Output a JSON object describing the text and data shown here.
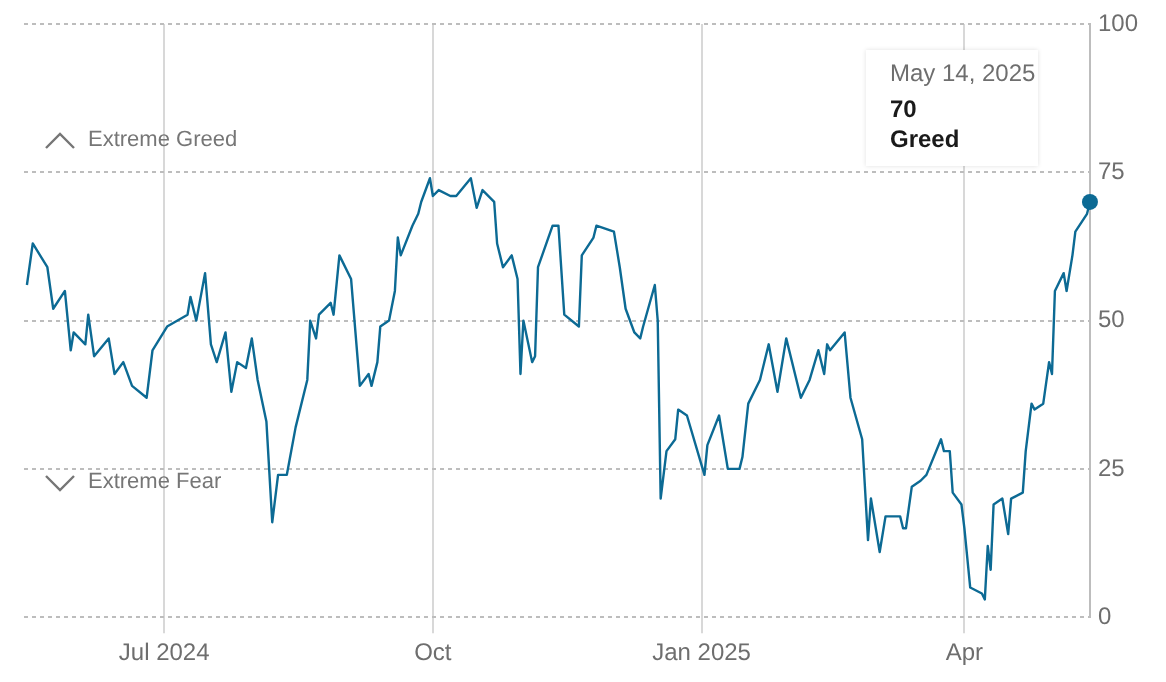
{
  "chart_data": {
    "type": "line",
    "grid": true,
    "legend": false,
    "marker": "none",
    "line_style": "solid",
    "xlim": [
      "2024-05-14",
      "2025-05-14"
    ],
    "ylim": [
      0,
      100
    ],
    "yticks": [
      0,
      25,
      50,
      75,
      100
    ],
    "xticks": [
      {
        "value": "2024-07-01",
        "label": "Jul 2024"
      },
      {
        "value": "2024-10-01",
        "label": "Oct"
      },
      {
        "value": "2025-01-01",
        "label": "Jan 2025"
      },
      {
        "value": "2025-04-01",
        "label": "Apr"
      }
    ],
    "annotations": [
      "Extreme Greed",
      "Extreme Fear",
      "May 14, 2025",
      "70",
      "Greed"
    ],
    "series": [
      {
        "color": "#0c6a94",
        "x": [
          "2024-05-15",
          "2024-05-17",
          "2024-05-22",
          "2024-05-24",
          "2024-05-28",
          "2024-05-30",
          "2024-05-31",
          "2024-06-04",
          "2024-06-05",
          "2024-06-07",
          "2024-06-12",
          "2024-06-14",
          "2024-06-17",
          "2024-06-20",
          "2024-06-25",
          "2024-06-27",
          "2024-07-02",
          "2024-07-09",
          "2024-07-10",
          "2024-07-12",
          "2024-07-15",
          "2024-07-17",
          "2024-07-19",
          "2024-07-22",
          "2024-07-24",
          "2024-07-26",
          "2024-07-29",
          "2024-07-31",
          "2024-08-02",
          "2024-08-05",
          "2024-08-07",
          "2024-08-09",
          "2024-08-12",
          "2024-08-15",
          "2024-08-19",
          "2024-08-20",
          "2024-08-22",
          "2024-08-23",
          "2024-08-27",
          "2024-08-28",
          "2024-08-30",
          "2024-09-03",
          "2024-09-06",
          "2024-09-09",
          "2024-09-10",
          "2024-09-12",
          "2024-09-13",
          "2024-09-16",
          "2024-09-18",
          "2024-09-19",
          "2024-09-20",
          "2024-09-24",
          "2024-09-26",
          "2024-09-27",
          "2024-09-30",
          "2024-10-01",
          "2024-10-03",
          "2024-10-07",
          "2024-10-09",
          "2024-10-14",
          "2024-10-16",
          "2024-10-18",
          "2024-10-22",
          "2024-10-23",
          "2024-10-25",
          "2024-10-28",
          "2024-10-30",
          "2024-10-31",
          "2024-11-01",
          "2024-11-04",
          "2024-11-05",
          "2024-11-06",
          "2024-11-11",
          "2024-11-13",
          "2024-11-15",
          "2024-11-20",
          "2024-11-21",
          "2024-11-25",
          "2024-11-26",
          "2024-12-02",
          "2024-12-04",
          "2024-12-06",
          "2024-12-09",
          "2024-12-11",
          "2024-12-12",
          "2024-12-16",
          "2024-12-17",
          "2024-12-18",
          "2024-12-20",
          "2024-12-23",
          "2024-12-24",
          "2024-12-27",
          "2025-01-02",
          "2025-01-03",
          "2025-01-07",
          "2025-01-10",
          "2025-01-14",
          "2025-01-15",
          "2025-01-17",
          "2025-01-21",
          "2025-01-24",
          "2025-01-27",
          "2025-01-30",
          "2025-02-04",
          "2025-02-07",
          "2025-02-10",
          "2025-02-12",
          "2025-02-13",
          "2025-02-14",
          "2025-02-19",
          "2025-02-21",
          "2025-02-25",
          "2025-02-27",
          "2025-02-28",
          "2025-03-03",
          "2025-03-05",
          "2025-03-10",
          "2025-03-11",
          "2025-03-12",
          "2025-03-14",
          "2025-03-17",
          "2025-03-19",
          "2025-03-24",
          "2025-03-25",
          "2025-03-27",
          "2025-03-28",
          "2025-03-31",
          "2025-04-01",
          "2025-04-03",
          "2025-04-07",
          "2025-04-08",
          "2025-04-09",
          "2025-04-10",
          "2025-04-11",
          "2025-04-14",
          "2025-04-16",
          "2025-04-17",
          "2025-04-21",
          "2025-04-22",
          "2025-04-24",
          "2025-04-25",
          "2025-04-28",
          "2025-04-30",
          "2025-05-01",
          "2025-05-02",
          "2025-05-05",
          "2025-05-06",
          "2025-05-08",
          "2025-05-09",
          "2025-05-13",
          "2025-05-14"
        ],
        "values": [
          56,
          63,
          59,
          52,
          55,
          45,
          48,
          46,
          51,
          44,
          47,
          41,
          43,
          39,
          37,
          45,
          49,
          51,
          54,
          50,
          58,
          46,
          43,
          48,
          38,
          43,
          42,
          47,
          40,
          33,
          16,
          24,
          24,
          32,
          40,
          50,
          47,
          51,
          53,
          51,
          61,
          57,
          39,
          41,
          39,
          43,
          49,
          50,
          55,
          64,
          61,
          66,
          68,
          70,
          74,
          71,
          72,
          71,
          71,
          74,
          69,
          72,
          70,
          63,
          59,
          61,
          57,
          41,
          50,
          43,
          44,
          59,
          66,
          66,
          51,
          49,
          61,
          64,
          66,
          65,
          59,
          52,
          48,
          47,
          49,
          56,
          50,
          20,
          28,
          30,
          35,
          34,
          24,
          29,
          34,
          25,
          25,
          27,
          36,
          40,
          46,
          38,
          47,
          37,
          40,
          45,
          41,
          46,
          45,
          48,
          37,
          30,
          13,
          20,
          11,
          17,
          17,
          15,
          15,
          22,
          23,
          24,
          30,
          28,
          28,
          21,
          19,
          15,
          5,
          4,
          3,
          12,
          8,
          19,
          20,
          14,
          20,
          21,
          28,
          36,
          35,
          36,
          43,
          41,
          55,
          58,
          55,
          61,
          65,
          68,
          70
        ]
      }
    ]
  }
}
